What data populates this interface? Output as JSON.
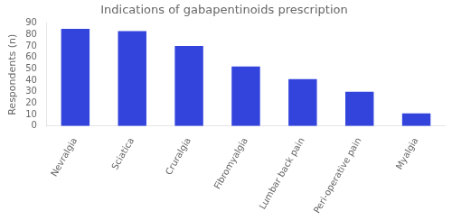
{
  "chart_data": {
    "type": "bar",
    "title": "Indications of gabapentinoids prescription",
    "ylabel": "Respondents (n)",
    "categories": [
      "Nevralgia",
      "Sciatica",
      "Cruralgia",
      "Fibromyalgia",
      "Lumbar back pain",
      "Peri-operative pain",
      "Myalgia"
    ],
    "values": [
      85,
      83,
      70,
      52,
      41,
      30,
      11
    ],
    "color": "#3344dd",
    "ylim": [
      0,
      90
    ],
    "yticks": [
      0,
      10,
      20,
      30,
      40,
      50,
      60,
      70,
      80,
      90
    ],
    "grid": false
  }
}
